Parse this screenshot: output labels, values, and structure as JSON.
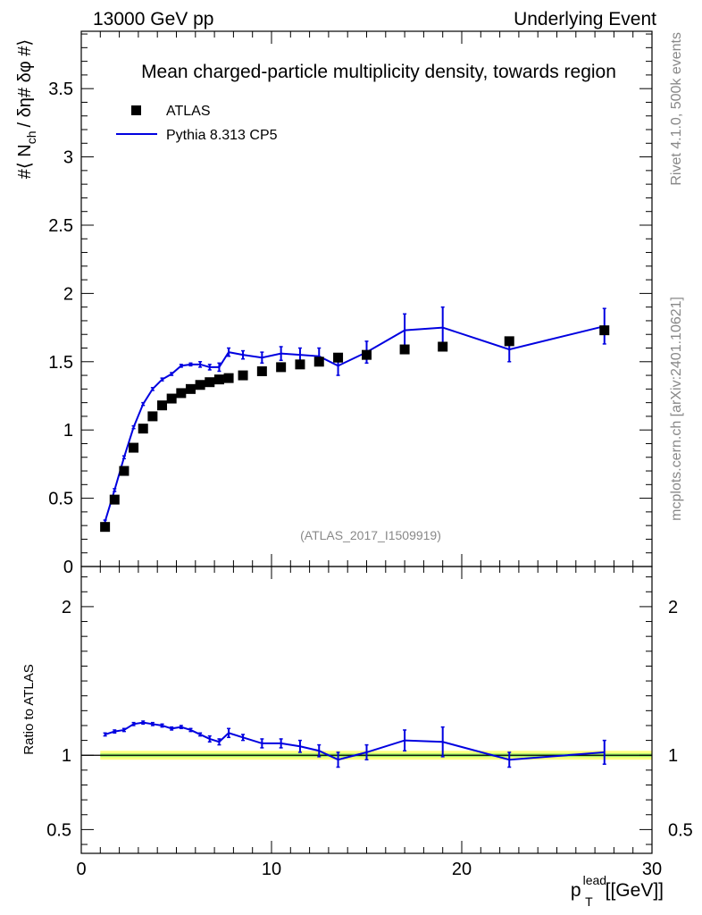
{
  "header": {
    "left": "13000 GeV pp",
    "right": "Underlying Event"
  },
  "side_labels": {
    "rivet": "Rivet 4.1.0,  500k events",
    "mcplots": "mcplots.cern.ch [arXiv:2401.10621]"
  },
  "colors": {
    "data": "#000000",
    "mc": "#0000e0",
    "band_outer": "#ffff80",
    "band_inner": "#99ee66"
  },
  "chart_data": [
    {
      "type": "scatter",
      "title": "Mean charged-particle multiplicity density, towards region",
      "ylabel_prefix": "#⟨ N",
      "ylabel_sub": "ch",
      "ylabel_suffix": "/ δη# δφ #⟩",
      "watermark": "(ATLAS_2017_I1509919)",
      "xlim": [
        0,
        30
      ],
      "ylim": [
        0,
        3.92
      ],
      "yticks": [
        0,
        0.5,
        1,
        1.5,
        2,
        2.5,
        3,
        3.5
      ],
      "ytick_labels": [
        "0",
        "0.5",
        "1",
        "1.5",
        "2",
        "2.5",
        "3",
        "3.5"
      ],
      "legend": [
        {
          "label": "ATLAS",
          "marker": "square"
        },
        {
          "label": "Pythia 8.313 CP5",
          "marker": "line"
        }
      ],
      "series": [
        {
          "name": "ATLAS",
          "style": "markers",
          "x": [
            1.25,
            1.75,
            2.25,
            2.75,
            3.25,
            3.75,
            4.25,
            4.75,
            5.25,
            5.75,
            6.25,
            6.75,
            7.25,
            7.75,
            8.5,
            9.5,
            10.5,
            11.5,
            12.5,
            13.5,
            15.0,
            17.0,
            19.0,
            22.5,
            27.5
          ],
          "y": [
            0.29,
            0.49,
            0.7,
            0.87,
            1.01,
            1.1,
            1.18,
            1.23,
            1.27,
            1.3,
            1.33,
            1.35,
            1.37,
            1.38,
            1.4,
            1.43,
            1.46,
            1.48,
            1.5,
            1.53,
            1.55,
            1.59,
            1.61,
            1.65,
            1.73
          ]
        },
        {
          "name": "Pythia 8.313 CP5",
          "style": "line",
          "x": [
            1.25,
            1.75,
            2.25,
            2.75,
            3.25,
            3.75,
            4.25,
            4.75,
            5.25,
            5.75,
            6.25,
            6.75,
            7.25,
            7.75,
            8.5,
            9.5,
            10.5,
            11.5,
            12.5,
            13.5,
            15.0,
            17.0,
            19.0,
            22.5,
            27.5
          ],
          "y": [
            0.33,
            0.56,
            0.8,
            1.02,
            1.19,
            1.3,
            1.37,
            1.41,
            1.47,
            1.48,
            1.48,
            1.46,
            1.46,
            1.57,
            1.55,
            1.53,
            1.56,
            1.55,
            1.54,
            1.47,
            1.57,
            1.73,
            1.75,
            1.59,
            1.76
          ],
          "yerr": [
            0.01,
            0.01,
            0.01,
            0.01,
            0.01,
            0.01,
            0.01,
            0.01,
            0.01,
            0.01,
            0.02,
            0.02,
            0.03,
            0.03,
            0.03,
            0.04,
            0.05,
            0.05,
            0.06,
            0.07,
            0.08,
            0.12,
            0.15,
            0.09,
            0.13
          ]
        }
      ]
    },
    {
      "type": "line",
      "ylabel": "Ratio to ATLAS",
      "xlabel_base": "p",
      "xlabel_sup": "lead",
      "xlabel_sub": "T",
      "xlabel_unit": "[[GeV]]",
      "xlim": [
        0,
        30
      ],
      "xticks": [
        0,
        10,
        20,
        30
      ],
      "xtick_labels": [
        "0",
        "10",
        "20",
        "30"
      ],
      "ylim": [
        0.34,
        2.27
      ],
      "yticks": [
        0.5,
        1,
        2
      ],
      "ytick_labels": [
        "0.5",
        "1",
        "2"
      ],
      "band": {
        "outer": 0.03,
        "inner": 0.012
      },
      "series": [
        {
          "name": "Pythia 8.313 CP5 / ATLAS",
          "x": [
            1.25,
            1.75,
            2.25,
            2.75,
            3.25,
            3.75,
            4.25,
            4.75,
            5.25,
            5.75,
            6.25,
            6.75,
            7.25,
            7.75,
            8.5,
            9.5,
            10.5,
            11.5,
            12.5,
            13.5,
            15.0,
            17.0,
            19.0,
            22.5,
            27.5
          ],
          "y": [
            1.14,
            1.16,
            1.17,
            1.21,
            1.22,
            1.21,
            1.2,
            1.18,
            1.19,
            1.17,
            1.14,
            1.11,
            1.09,
            1.15,
            1.12,
            1.08,
            1.08,
            1.06,
            1.03,
            0.97,
            1.02,
            1.1,
            1.09,
            0.97,
            1.02
          ],
          "yerr": [
            0.01,
            0.01,
            0.01,
            0.01,
            0.01,
            0.01,
            0.01,
            0.01,
            0.01,
            0.01,
            0.01,
            0.02,
            0.02,
            0.03,
            0.02,
            0.03,
            0.03,
            0.04,
            0.04,
            0.05,
            0.05,
            0.07,
            0.1,
            0.05,
            0.08
          ]
        }
      ]
    }
  ]
}
